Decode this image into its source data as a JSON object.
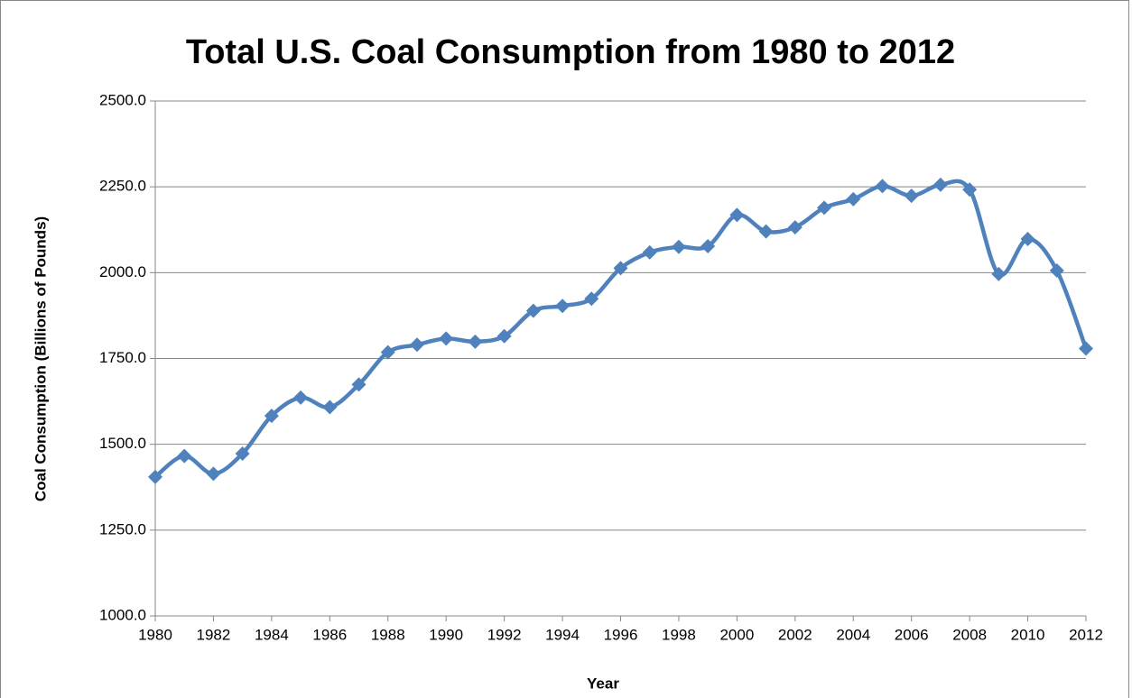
{
  "chart_data": {
    "type": "line",
    "title": "Total U.S. Coal Consumption from 1980 to 2012",
    "x_label": "Year",
    "y_label": "Coal Consumption (Billions of Pounds)",
    "x": [
      1980,
      1981,
      1982,
      1983,
      1984,
      1985,
      1986,
      1987,
      1988,
      1989,
      1990,
      1991,
      1992,
      1993,
      1994,
      1995,
      1996,
      1997,
      1998,
      1999,
      2000,
      2001,
      2002,
      2003,
      2004,
      2005,
      2006,
      2007,
      2008,
      2009,
      2010,
      2011,
      2012
    ],
    "series": [
      {
        "name": "Coal Consumption",
        "color": "#4f81bd",
        "values": [
          1405,
          1466,
          1414,
          1473,
          1583,
          1636,
          1608,
          1674,
          1768,
          1790,
          1808,
          1799,
          1815,
          1889,
          1903,
          1924,
          2013,
          2059,
          2075,
          2077,
          2168,
          2120,
          2132,
          2189,
          2214,
          2252,
          2224,
          2256,
          2242,
          1996,
          2098,
          2006,
          1779
        ]
      }
    ],
    "xlim": [
      1980,
      2012
    ],
    "xticks": [
      1980,
      1982,
      1984,
      1986,
      1988,
      1990,
      1992,
      1994,
      1996,
      1998,
      2000,
      2002,
      2004,
      2006,
      2008,
      2010,
      2012
    ],
    "ylim": [
      1000,
      2500
    ],
    "yticks": [
      {
        "value": 1000,
        "label": "1000.0"
      },
      {
        "value": 1250,
        "label": "1250.0"
      },
      {
        "value": 1500,
        "label": "1500.0"
      },
      {
        "value": 1750,
        "label": "1750.0"
      },
      {
        "value": 2000,
        "label": "2000.0"
      },
      {
        "value": 2250,
        "label": "2250.0"
      },
      {
        "value": 2500,
        "label": "2500.0"
      }
    ],
    "grid": true
  }
}
